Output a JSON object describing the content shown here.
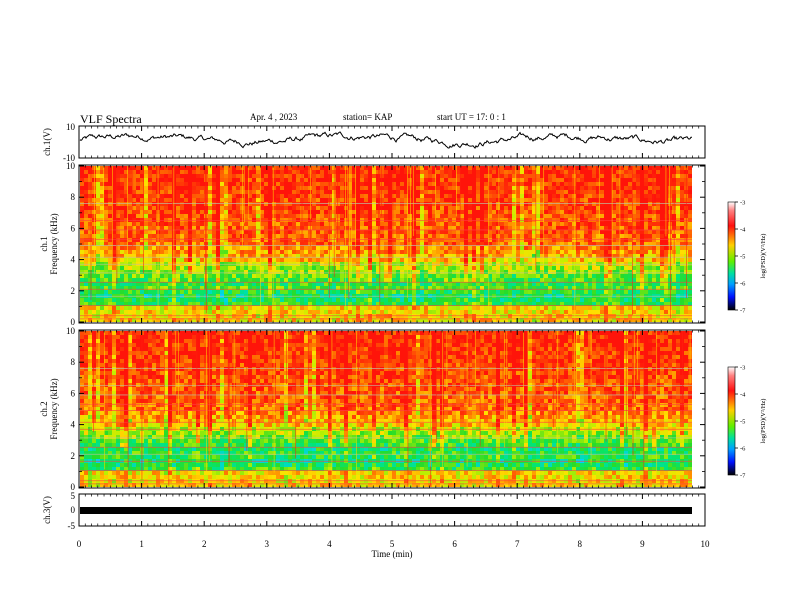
{
  "header": {
    "title": "VLF Spectra",
    "date": "Apr. 4 , 2023",
    "station": "station= KAP",
    "start": "start  UT =   17: 0  : 1"
  },
  "chart_data": [
    {
      "type": "line",
      "panel": "ch1-waveform",
      "ylabel": "ch.1(V)",
      "ylim": [
        -10,
        10
      ],
      "yticks": [
        "10",
        "-10"
      ],
      "xlim": [
        0,
        10
      ],
      "series": [
        {
          "values": "noisy waveform, amplitude roughly within -4 to 8 V"
        }
      ]
    },
    {
      "type": "heatmap",
      "panel": "ch1-spectrogram",
      "ylabel": "ch.1\nFrequency (kHz)",
      "ylim": [
        0,
        10
      ],
      "yticks": [
        "0",
        "2",
        "4",
        "6",
        "8",
        "10"
      ],
      "xlim": [
        0,
        9.85
      ],
      "colorbar": {
        "label": "log(PSD)(V²/Hz)",
        "range": [
          -7,
          -3
        ],
        "ticks": [
          "-3",
          "-4",
          "-5",
          "-6",
          "-7"
        ]
      }
    },
    {
      "type": "heatmap",
      "panel": "ch2-spectrogram",
      "ylabel": "ch.2\nFrequency (kHz)",
      "ylim": [
        0,
        10
      ],
      "yticks": [
        "0",
        "2",
        "4",
        "6",
        "8",
        "10"
      ],
      "xlim": [
        0,
        9.85
      ],
      "colorbar": {
        "label": "log(PSD)(V²/Hz)",
        "range": [
          -7,
          -3
        ],
        "ticks": [
          "-3",
          "-4",
          "-5",
          "-6",
          "-7"
        ]
      }
    },
    {
      "type": "line",
      "panel": "ch3-waveform",
      "ylabel": "ch.3(V)",
      "ylim": [
        -5,
        5
      ],
      "yticks": [
        "5",
        "0",
        "-5"
      ],
      "xlim": [
        0,
        10
      ],
      "series": [
        {
          "values": "near-constant level around -1.2 V"
        }
      ]
    }
  ],
  "xaxis": {
    "label": "Time (min)",
    "ticks": [
      "0",
      "1",
      "2",
      "3",
      "4",
      "5",
      "6",
      "7",
      "8",
      "9",
      "10"
    ]
  },
  "colors": {
    "spectrum_high": "#ff2a10",
    "spectrum_mid": "#ffe000",
    "spectrum_low": "#00e040",
    "spectrum_min": "#00d8ff"
  }
}
